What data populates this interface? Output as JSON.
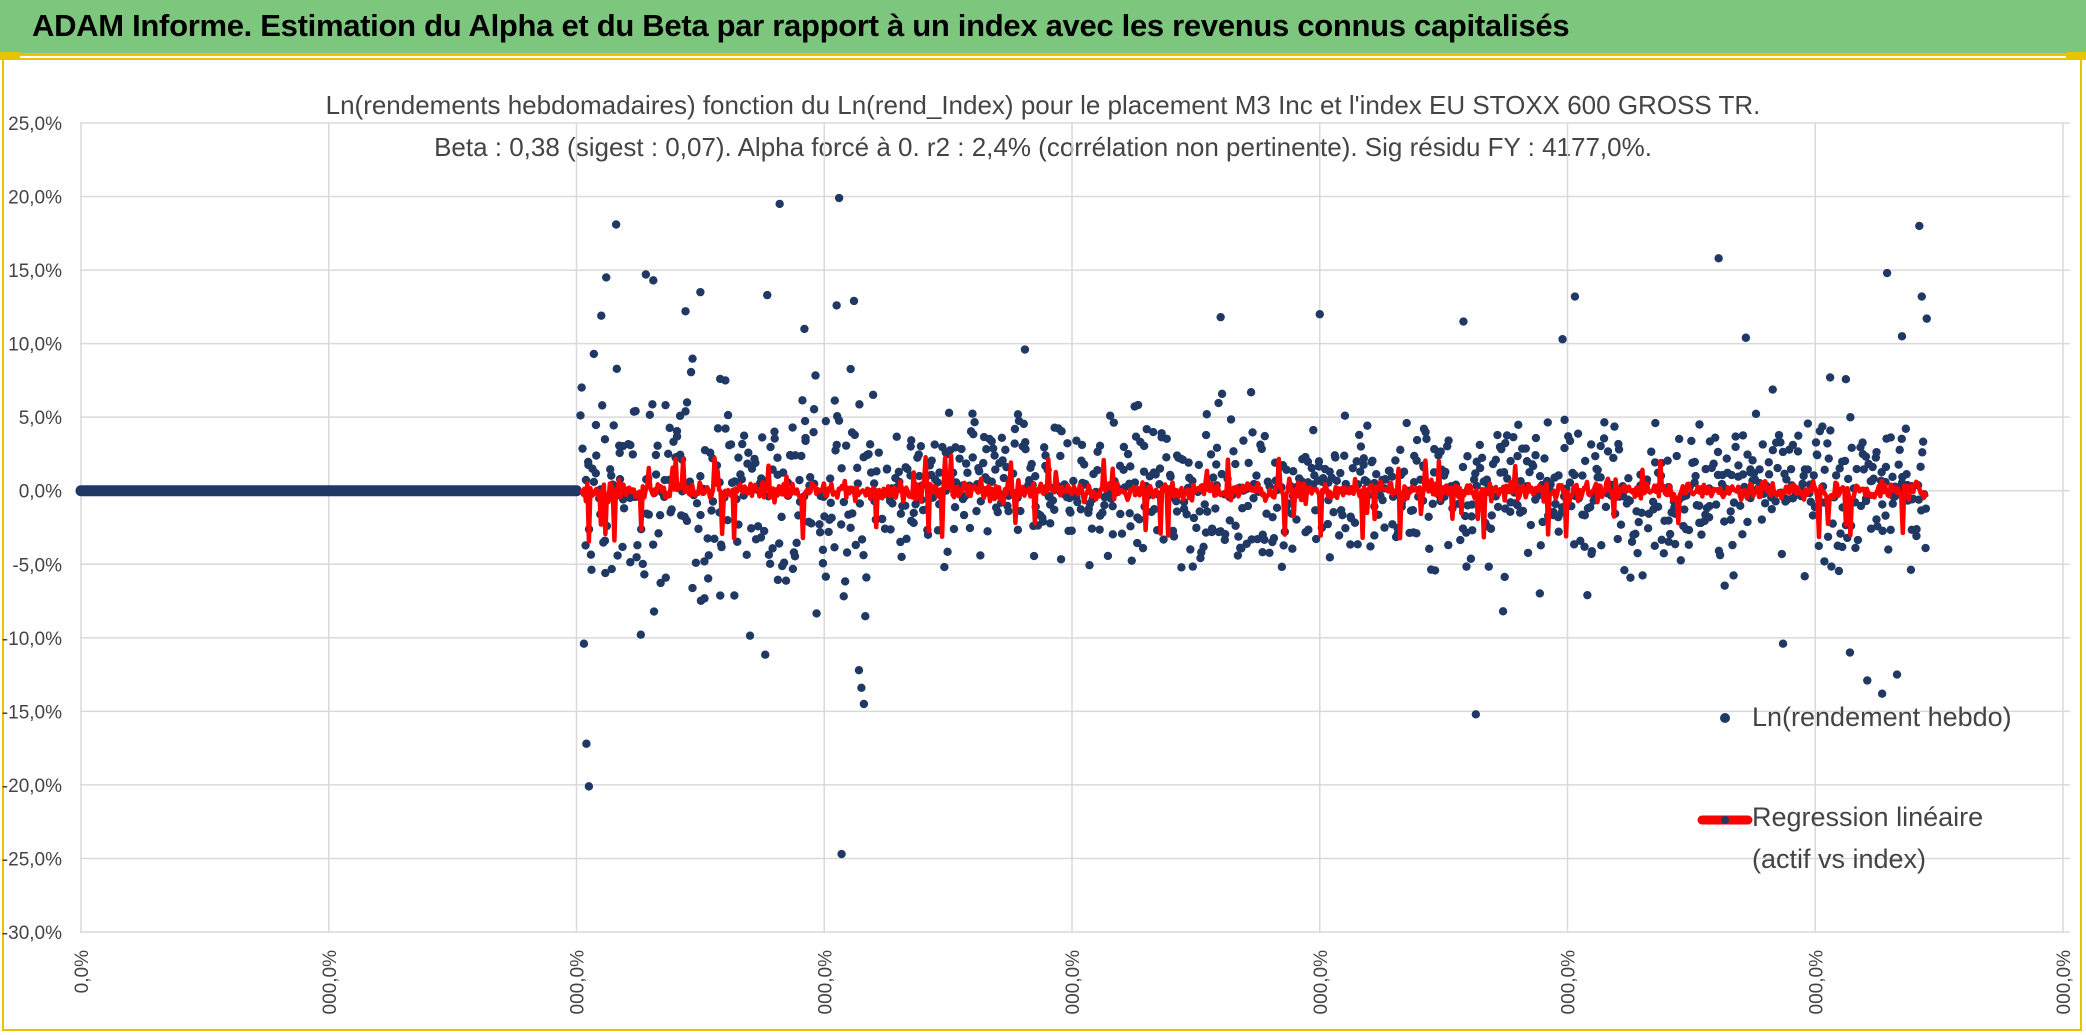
{
  "header": {
    "title": "ADAM Informe. Estimation du Alpha et du Beta par rapport à un index avec les revenus connus capitalisés"
  },
  "colors": {
    "banner": "#7dc67d",
    "banner_border": "#e8c400",
    "points": "#1f3864",
    "regression": "#ff0000",
    "grid": "#d9d9d9"
  },
  "chart_data": {
    "type": "scatter",
    "title_line1": "Ln(rendements hebdomadaires) fonction du Ln(rend_Index) pour le placement M3 Inc et l'index EU STOXX 600 GROSS TR.",
    "title_line2": "Beta : 0,38 (sigest : 0,07). Alpha forcé à 0. r2 : 2,4% (corrélation non pertinente). Sig résidu FY : 4177,0%.",
    "ylim": [
      -0.3,
      0.25
    ],
    "y_ticks": [
      "25,0%",
      "20,0%",
      "15,0%",
      "10,0%",
      "5,0%",
      "0,0%",
      "-5,0%",
      "-10,0%",
      "-15,0%",
      "-20,0%",
      "-25,0%",
      "-30,0%"
    ],
    "x_ticks": [
      "0,0%",
      "000,0%",
      "000,0%",
      "000,0%",
      "000,0%",
      "000,0%",
      "000,0%",
      "000,0%",
      "000,0%"
    ],
    "grid": true,
    "legend_placement": "right",
    "series": [
      {
        "name": "Ln(rendement hebdo)",
        "type": "scatter",
        "color": "#1f3864"
      },
      {
        "name": "Regression linéaire (actif vs index)",
        "type": "line",
        "color": "#ff0000"
      }
    ],
    "flat_segment": {
      "x_range": [
        0,
        2.0
      ],
      "y": 0.0
    },
    "active_x_range": [
      2.02,
      7.45
    ],
    "notable_points": [
      [
        2.03,
        -0.104
      ],
      [
        2.04,
        -0.172
      ],
      [
        2.05,
        -0.201
      ],
      [
        2.07,
        0.093
      ],
      [
        2.1,
        0.119
      ],
      [
        2.12,
        0.145
      ],
      [
        2.16,
        0.181
      ],
      [
        2.28,
        0.147
      ],
      [
        2.31,
        0.143
      ],
      [
        2.44,
        0.122
      ],
      [
        2.5,
        0.135
      ],
      [
        2.58,
        0.076
      ],
      [
        2.77,
        0.133
      ],
      [
        2.82,
        0.195
      ],
      [
        2.92,
        0.11
      ],
      [
        3.05,
        0.126
      ],
      [
        3.06,
        0.199
      ],
      [
        3.07,
        -0.247
      ],
      [
        3.12,
        0.129
      ],
      [
        3.14,
        -0.122
      ],
      [
        3.15,
        -0.134
      ],
      [
        3.16,
        -0.145
      ],
      [
        3.81,
        0.096
      ],
      [
        4.6,
        0.118
      ],
      [
        5.0,
        0.12
      ],
      [
        5.58,
        0.115
      ],
      [
        5.63,
        -0.152
      ],
      [
        5.74,
        -0.082
      ],
      [
        5.98,
        0.103
      ],
      [
        6.03,
        0.132
      ],
      [
        6.61,
        0.158
      ],
      [
        6.72,
        0.104
      ],
      [
        6.87,
        -0.104
      ],
      [
        7.06,
        0.077
      ],
      [
        7.14,
        -0.11
      ],
      [
        7.21,
        -0.129
      ],
      [
        7.27,
        -0.138
      ],
      [
        7.29,
        0.148
      ],
      [
        7.33,
        -0.125
      ],
      [
        7.35,
        0.105
      ],
      [
        7.42,
        0.18
      ],
      [
        7.43,
        0.132
      ],
      [
        7.45,
        0.117
      ]
    ]
  },
  "legend": {
    "item1": "Ln(rendement hebdo)",
    "item2_line1": "Regression linéaire",
    "item2_line2": "(actif vs index)"
  }
}
